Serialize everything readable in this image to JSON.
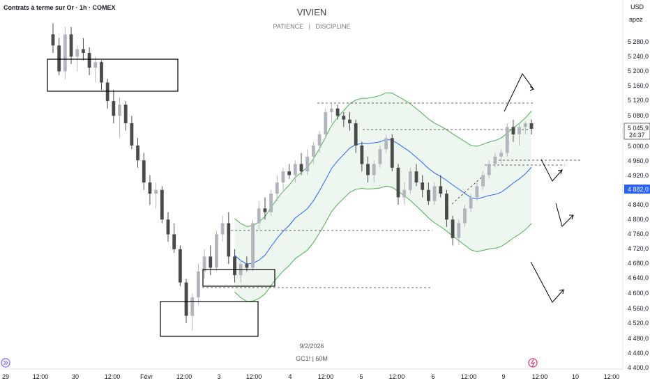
{
  "header": {
    "symbol_title": "Contrats à terme sur Or · 1h · COMEX",
    "watermark_title": "VIVIEN",
    "watermark_subtitle": "PATIENCE   |   DISCIPLINE",
    "bottom_date": "9/2/2026",
    "bottom_ticker": "GC1! | 60M"
  },
  "price_scale": {
    "currency": "USD",
    "user": "apoz",
    "ticks": [
      "5 280,0",
      "5 240,0",
      "5 200,0",
      "5 160,0",
      "5 120,0",
      "5 080,0",
      "5 000,0",
      "4 960,0",
      "4 920,0",
      "4 840,0",
      "4 800,0",
      "4 760,0",
      "4 720,0",
      "4 680,0",
      "4 640,0",
      "4 600,0",
      "4 560,0",
      "4 520,0",
      "4 480,0",
      "4 440,0",
      "4 400,0"
    ],
    "last_price_label": "5 045,9",
    "countdown_label": "24:37",
    "ma_price_label": "4 882,0"
  },
  "time_axis": {
    "labels": [
      "29",
      "12:00",
      "30",
      "12:00",
      "Févr",
      "12:00",
      "3",
      "12:00",
      "4",
      "12:00",
      "5",
      "12:00",
      "6",
      "12:00",
      "9",
      "12:00",
      "10",
      "12:00"
    ]
  },
  "colors": {
    "up_candle": "#b2b5be",
    "down_candle": "#4a4a4a",
    "ma_line": "#2962ff",
    "band_line": "#4caf50",
    "band_fill": "#e6f4ea",
    "last_price_bg": "#ffffff",
    "ma_label_bg": "#2962ff"
  },
  "icons": {
    "left_bottom": "double-chevron-right-icon",
    "right_bottom": "lightning-icon"
  },
  "chart_data": {
    "type": "candlestick",
    "title": "Contrats à terme sur Or · 1h · COMEX",
    "xlabel": "",
    "ylabel": "",
    "ylim": [
      4400,
      5320
    ],
    "series": [
      {
        "name": "GC1!",
        "ohlc": [
          [
            5300,
            5330,
            5250,
            5270
          ],
          [
            5270,
            5290,
            5190,
            5200
          ],
          [
            5200,
            5320,
            5180,
            5300
          ],
          [
            5300,
            5320,
            5220,
            5240
          ],
          [
            5240,
            5270,
            5200,
            5260
          ],
          [
            5260,
            5290,
            5230,
            5250
          ],
          [
            5250,
            5265,
            5190,
            5210
          ],
          [
            5210,
            5240,
            5170,
            5225
          ],
          [
            5225,
            5230,
            5150,
            5170
          ],
          [
            5170,
            5180,
            5100,
            5120
          ],
          [
            5120,
            5150,
            5060,
            5080
          ],
          [
            5080,
            5130,
            5020,
            5110
          ],
          [
            5110,
            5120,
            5040,
            5060
          ],
          [
            5060,
            5080,
            4990,
            5000
          ],
          [
            5000,
            5020,
            4940,
            4960
          ],
          [
            4960,
            4980,
            4880,
            4900
          ],
          [
            4900,
            4920,
            4840,
            4870
          ],
          [
            4870,
            4900,
            4830,
            4880
          ],
          [
            4880,
            4890,
            4790,
            4800
          ],
          [
            4800,
            4820,
            4740,
            4760
          ],
          [
            4760,
            4790,
            4710,
            4720
          ],
          [
            4720,
            4730,
            4620,
            4630
          ],
          [
            4630,
            4640,
            4520,
            4540
          ],
          [
            4540,
            4600,
            4500,
            4590
          ],
          [
            4590,
            4680,
            4570,
            4660
          ],
          [
            4660,
            4720,
            4640,
            4700
          ],
          [
            4700,
            4730,
            4650,
            4670
          ],
          [
            4670,
            4770,
            4660,
            4760
          ],
          [
            4760,
            4810,
            4740,
            4790
          ],
          [
            4790,
            4820,
            4680,
            4700
          ],
          [
            4700,
            4720,
            4630,
            4650
          ],
          [
            4650,
            4690,
            4630,
            4680
          ],
          [
            4680,
            4700,
            4660,
            4670
          ],
          [
            4670,
            4800,
            4660,
            4790
          ],
          [
            4790,
            4850,
            4770,
            4830
          ],
          [
            4830,
            4860,
            4800,
            4820
          ],
          [
            4820,
            4880,
            4810,
            4870
          ],
          [
            4870,
            4920,
            4850,
            4900
          ],
          [
            4900,
            4940,
            4880,
            4930
          ],
          [
            4930,
            4950,
            4910,
            4920
          ],
          [
            4920,
            4960,
            4900,
            4950
          ],
          [
            4950,
            4980,
            4920,
            4930
          ],
          [
            4930,
            4990,
            4920,
            4970
          ],
          [
            4970,
            5010,
            4950,
            5000
          ],
          [
            5000,
            5040,
            4980,
            5030
          ],
          [
            5030,
            5100,
            5020,
            5090
          ],
          [
            5090,
            5115,
            5060,
            5100
          ],
          [
            5100,
            5110,
            5070,
            5080
          ],
          [
            5080,
            5090,
            5050,
            5070
          ],
          [
            5070,
            5090,
            5040,
            5060
          ],
          [
            5060,
            5070,
            4980,
            5000
          ],
          [
            5000,
            5010,
            4930,
            4950
          ],
          [
            4950,
            4970,
            4900,
            4920
          ],
          [
            4920,
            4960,
            4900,
            4950
          ],
          [
            4950,
            5000,
            4940,
            4990
          ],
          [
            4990,
            5030,
            4980,
            5020
          ],
          [
            5020,
            5030,
            4930,
            4940
          ],
          [
            4940,
            4950,
            4840,
            4860
          ],
          [
            4860,
            4900,
            4840,
            4880
          ],
          [
            4880,
            4940,
            4870,
            4930
          ],
          [
            4930,
            4950,
            4890,
            4900
          ],
          [
            4900,
            4920,
            4860,
            4880
          ],
          [
            4880,
            4900,
            4840,
            4850
          ],
          [
            4850,
            4900,
            4840,
            4890
          ],
          [
            4890,
            4920,
            4860,
            4870
          ],
          [
            4870,
            4880,
            4780,
            4800
          ],
          [
            4800,
            4810,
            4730,
            4750
          ],
          [
            4750,
            4800,
            4730,
            4790
          ],
          [
            4790,
            4840,
            4780,
            4830
          ],
          [
            4830,
            4870,
            4820,
            4860
          ],
          [
            4860,
            4900,
            4850,
            4890
          ],
          [
            4890,
            4930,
            4880,
            4920
          ],
          [
            4920,
            4960,
            4910,
            4950
          ],
          [
            4950,
            4980,
            4940,
            4970
          ],
          [
            4970,
            4990,
            4950,
            4980
          ],
          [
            4980,
            5060,
            4970,
            5050
          ],
          [
            5050,
            5070,
            5010,
            5030
          ],
          [
            5030,
            5060,
            5000,
            5050
          ],
          [
            5050,
            5065,
            5030,
            5060
          ],
          [
            5060,
            5070,
            5030,
            5045
          ]
        ]
      }
    ],
    "moving_average_label": "4 882,0",
    "last_price": 5045.9
  }
}
